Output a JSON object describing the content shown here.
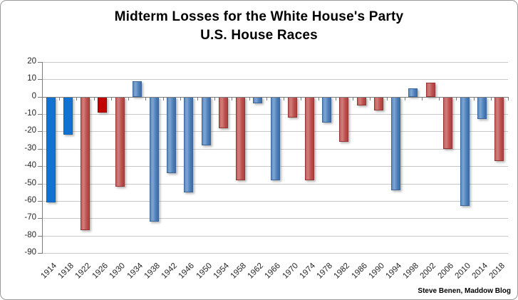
{
  "title": {
    "line1": "Midterm Losses for the White House's Party",
    "line2": "U.S. House Races"
  },
  "attribution": "Steve Benen, Maddow Blog",
  "colors": {
    "dem_blue": "#4F81BD",
    "dem_blue_bright": "#1172D0",
    "rep_red": "#C0504D",
    "rep_red_bright": "#C00000",
    "gridline": "#C8C8C8",
    "axis_line": "#7A7A7A",
    "label_text": "#262626",
    "title_text": "#000000"
  },
  "y_axis": {
    "ticks": [
      20,
      10,
      0,
      -10,
      -20,
      -30,
      -40,
      -50,
      -60,
      -70,
      -80,
      -90
    ]
  },
  "chart_data": {
    "type": "bar",
    "title": "Midterm Losses for the White House's Party",
    "subtitle": "U.S. House Races",
    "xlabel": "",
    "ylabel": "",
    "ylim": [
      -90,
      20
    ],
    "grid": true,
    "legend": false,
    "categories": [
      "1914",
      "1918",
      "1922",
      "1926",
      "1930",
      "1934",
      "1938",
      "1942",
      "1946",
      "1950",
      "1954",
      "1958",
      "1962",
      "1966",
      "1970",
      "1974",
      "1978",
      "1982",
      "1986",
      "1990",
      "1994",
      "1998",
      "2002",
      "2006",
      "2010",
      "2014",
      "2018"
    ],
    "values": [
      -61,
      -22,
      -77,
      -9,
      -52,
      9,
      -72,
      -44,
      -55,
      -28,
      -18,
      -48,
      -4,
      -48,
      -12,
      -48,
      -15,
      -26,
      -5,
      -8,
      -54,
      5,
      8,
      -30,
      -63,
      -13,
      -37
    ],
    "bar_colors": [
      "dem-bright",
      "dem-bright",
      "rep",
      "rep-bright",
      "rep",
      "dem",
      "dem",
      "dem",
      "dem",
      "dem",
      "rep",
      "rep",
      "dem",
      "dem",
      "rep",
      "rep",
      "dem",
      "rep",
      "rep",
      "rep",
      "dem",
      "dem",
      "rep",
      "rep",
      "dem",
      "dem",
      "rep"
    ],
    "color_legend": {
      "dem": "#4F81BD",
      "dem-bright": "#1172D0",
      "rep": "#C0504D",
      "rep-bright": "#C00000"
    }
  }
}
